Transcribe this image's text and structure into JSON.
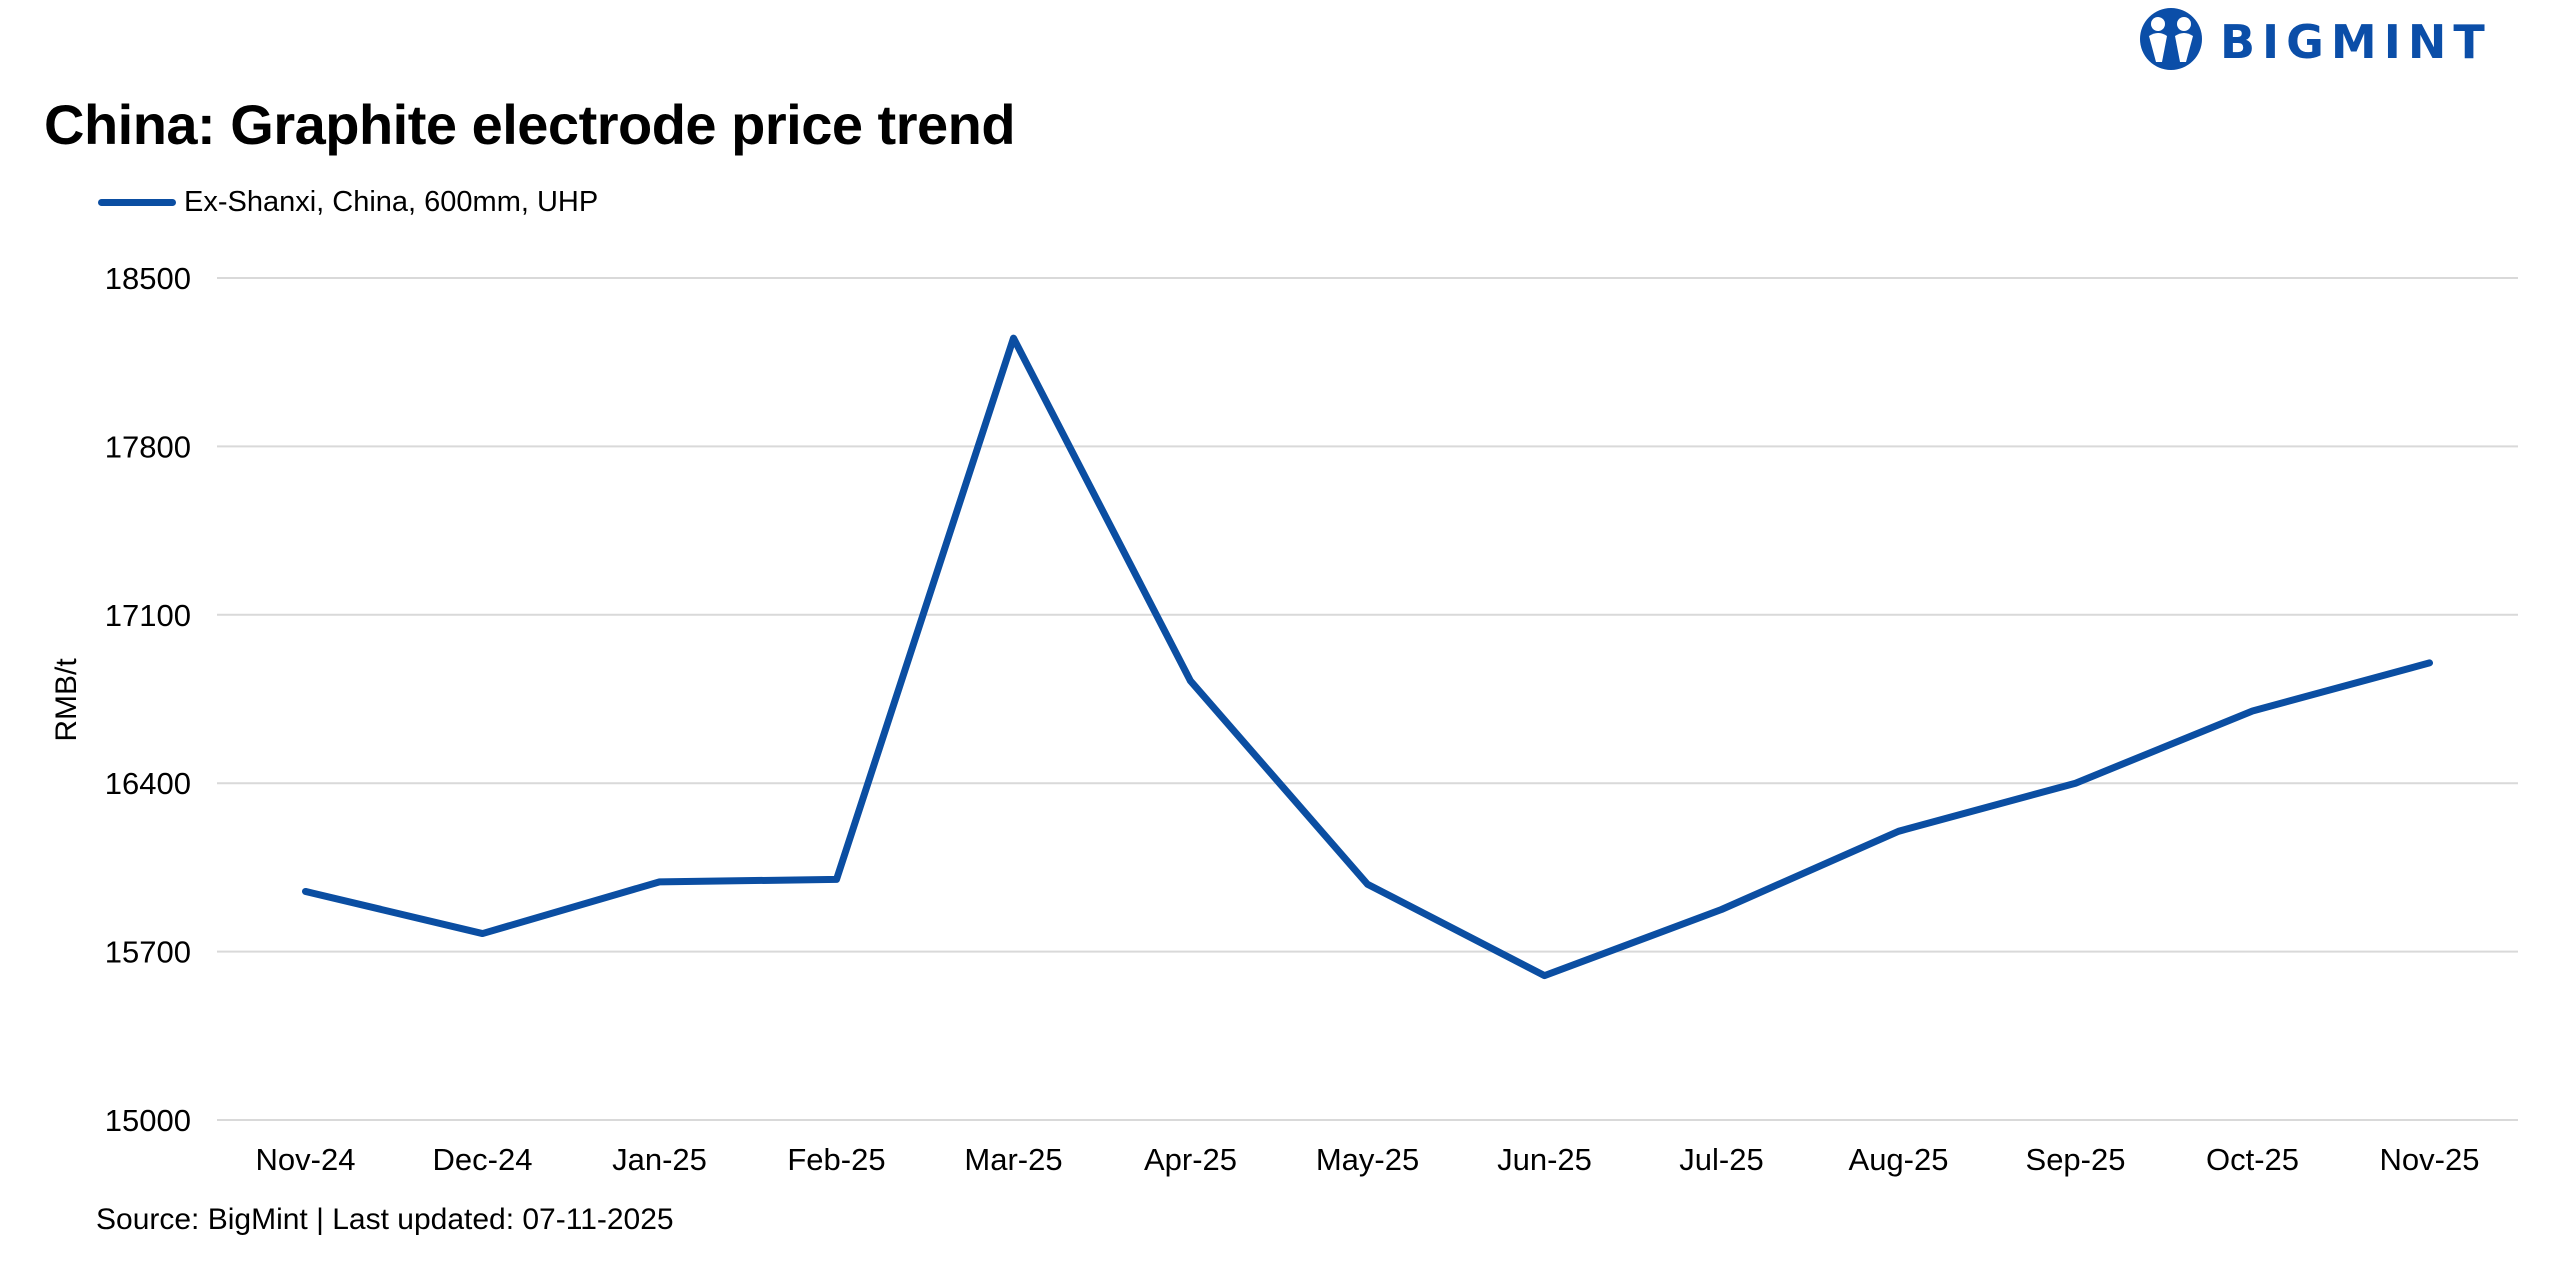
{
  "logo": {
    "text": "BIGMINT",
    "color": "#0b4ea8"
  },
  "chart_data": {
    "type": "line",
    "title": "China: Graphite electrode price trend",
    "xlabel": "",
    "ylabel": "RMB/t",
    "ylim": [
      15000,
      18500
    ],
    "yticks": [
      15000,
      15700,
      16400,
      17100,
      17800,
      18500
    ],
    "grid": true,
    "legend": "top-left",
    "categories": [
      "Nov-24",
      "Dec-24",
      "Jan-25",
      "Feb-25",
      "Mar-25",
      "Apr-25",
      "May-25",
      "Jun-25",
      "Jul-25",
      "Aug-25",
      "Sep-25",
      "Oct-25",
      "Nov-25"
    ],
    "series": [
      {
        "name": "Ex-Shanxi, China, 600mm, UHP",
        "color": "#0b4ea2",
        "values": [
          15950,
          15775,
          15990,
          16000,
          18250,
          16825,
          15980,
          15600,
          15875,
          16200,
          16400,
          16700,
          16900
        ]
      }
    ]
  },
  "source": "Source: BigMint | Last updated: 07-11-2025"
}
